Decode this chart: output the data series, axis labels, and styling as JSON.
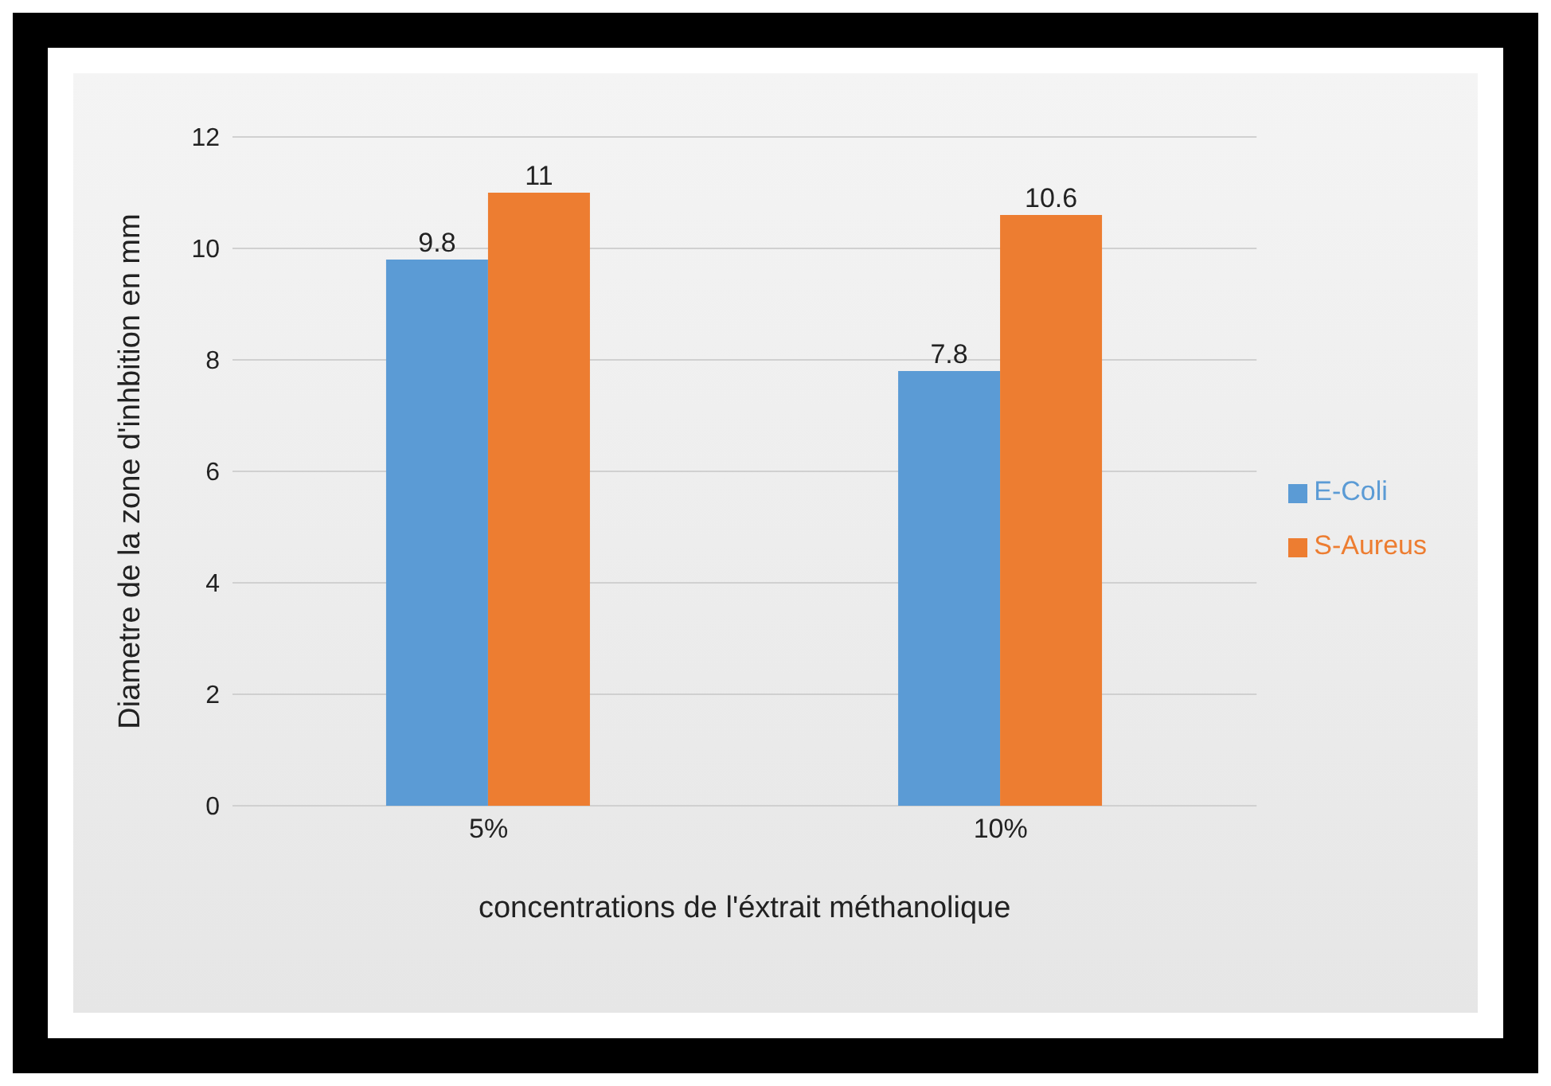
{
  "chart_data": {
    "type": "bar",
    "xlabel": "concentrations de l'éxtrait méthanolique",
    "ylabel": "Diametre de la zone d'inhbition en mm",
    "categories": [
      "5%",
      "10%"
    ],
    "series": [
      {
        "name": "E-Coli",
        "color": "#5b9bd5",
        "values": [
          9.8,
          7.8
        ]
      },
      {
        "name": "S-Aureus",
        "color": "#ed7d31",
        "values": [
          11,
          10.6
        ]
      }
    ],
    "ylim": [
      0,
      12
    ],
    "yticks": [
      0,
      2,
      4,
      6,
      8,
      10,
      12
    ],
    "grid": "y",
    "legend": "right",
    "data_labels": true
  }
}
